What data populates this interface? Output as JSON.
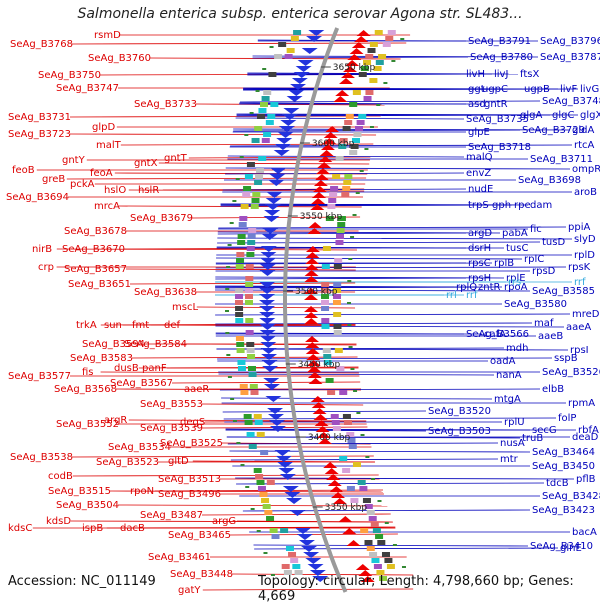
{
  "header": {
    "title": "Salmonella enterica subsp. enterica serovar Agona str. SL483...",
    "accession": "Accession: NC_011149",
    "topology": "Topology: circular; Length: 4,798,660 bp; Genes: 4,669"
  },
  "colors": {
    "left_labels": "#dd0000",
    "right_labels": "#0000bb",
    "rna_labels": "#33aadd",
    "backbone": "#9a9a9a",
    "tick_marker": "#338833"
  },
  "scale_ticks": [
    {
      "label": "3650 kbp"
    },
    {
      "label": "3600 kbp"
    },
    {
      "label": "3550 kbp"
    },
    {
      "label": "3500 kbp"
    },
    {
      "label": "3450 kbp"
    },
    {
      "label": "3400 kbp"
    },
    {
      "label": "3350 kbp"
    }
  ],
  "left_labels": [
    "SeAg_B3768",
    "rsmD",
    "SeAg_B3760",
    "SeAg_B3750",
    "SeAg_B3747",
    "SeAg_B3733",
    "SeAg_B3731",
    "glpD",
    "SeAg_B3723",
    "malT",
    "gntY",
    "gntX",
    "gntT",
    "feoB",
    "feoA",
    "greB",
    "pckA",
    "hslO",
    "hslR",
    "SeAg_B3694",
    "mrcA",
    "SeAg_B3679",
    "SeAg_B3678",
    "nirB",
    "SeAg_B3670",
    "crp",
    "SeAg_B3657",
    "SeAg_B3651",
    "SeAg_B3638",
    "mscL",
    "trkA",
    "sun",
    "fmt",
    "def",
    "SeAg_B3594",
    "SeAg_B3584",
    "SeAg_B3583",
    "SeAg_B3577",
    "fis",
    "dusB",
    "panF",
    "SeAg_B3568",
    "SeAg_B3567",
    "aaeR",
    "SeAg_B3553",
    "degS",
    "SeAg_B3552",
    "argR",
    "SeAg_B3539",
    "SeAg_B3534",
    "SeAg_B3525",
    "SeAg_B3538",
    "SeAg_B3523",
    "gltD",
    "codB",
    "SeAg_B3513",
    "SeAg_B3515",
    "rpoN",
    "SeAg_B3496",
    "SeAg_B3504",
    "SeAg_B3487",
    "kdsC",
    "kdsD",
    "ispB",
    "dacB",
    "argG",
    "SeAg_B3465",
    "SeAg_B3461",
    "SeAg_B3448",
    "gatY"
  ],
  "right_labels": [
    "SeAg_B3791",
    "SeAg_B3796",
    "SeAg_B3780",
    "SeAg_B3787",
    "livH",
    "livJ",
    "ftsX",
    "ggt",
    "ugpC",
    "ugpB",
    "livF",
    "livG",
    "asd",
    "gntR",
    "SeAg_B3748",
    "SeAg_B3735",
    "glgA",
    "glgC",
    "glgX",
    "glpE",
    "SeAg_B3729",
    "gldA",
    "SeAg_B3718",
    "rtcA",
    "malQ",
    "SeAg_B3711",
    "envZ",
    "ompR",
    "SeAg_B3698",
    "nudE",
    "trpS",
    "gph",
    "rpe",
    "dam",
    "aroB",
    "argD",
    "pabA",
    "fic",
    "ppiA",
    "dsrH",
    "tusC",
    "tusD",
    "slyD",
    "rpsC",
    "rplB",
    "rplC",
    "rplD",
    "rpsH",
    "rplE",
    "rpsD",
    "rpsK",
    "rplQ",
    "zntR",
    "rpoA",
    "SeAg_B3585",
    "SeAg_B3580",
    "mreD",
    "SeAg_B3566",
    "cafA",
    "maf",
    "aaeA",
    "aaeB",
    "mdh",
    "rpsI",
    "oadA",
    "sspB",
    "nanA",
    "SeAg_B3526",
    "elbB",
    "mtgA",
    "rpmA",
    "SeAg_B3520",
    "SeAg_B3503",
    "rplU",
    "folP",
    "secG",
    "rbfA",
    "nusA",
    "truB",
    "deaD",
    "mtr",
    "SeAg_B3464",
    "SeAg_B3450",
    "tdcB",
    "pflB",
    "SeAg_B3428",
    "SeAg_B3423",
    "SeAg_B3410",
    "bacA",
    "glnE"
  ],
  "rna_labels": [
    "rrs",
    "rrl",
    "rrf",
    "rrf"
  ]
}
